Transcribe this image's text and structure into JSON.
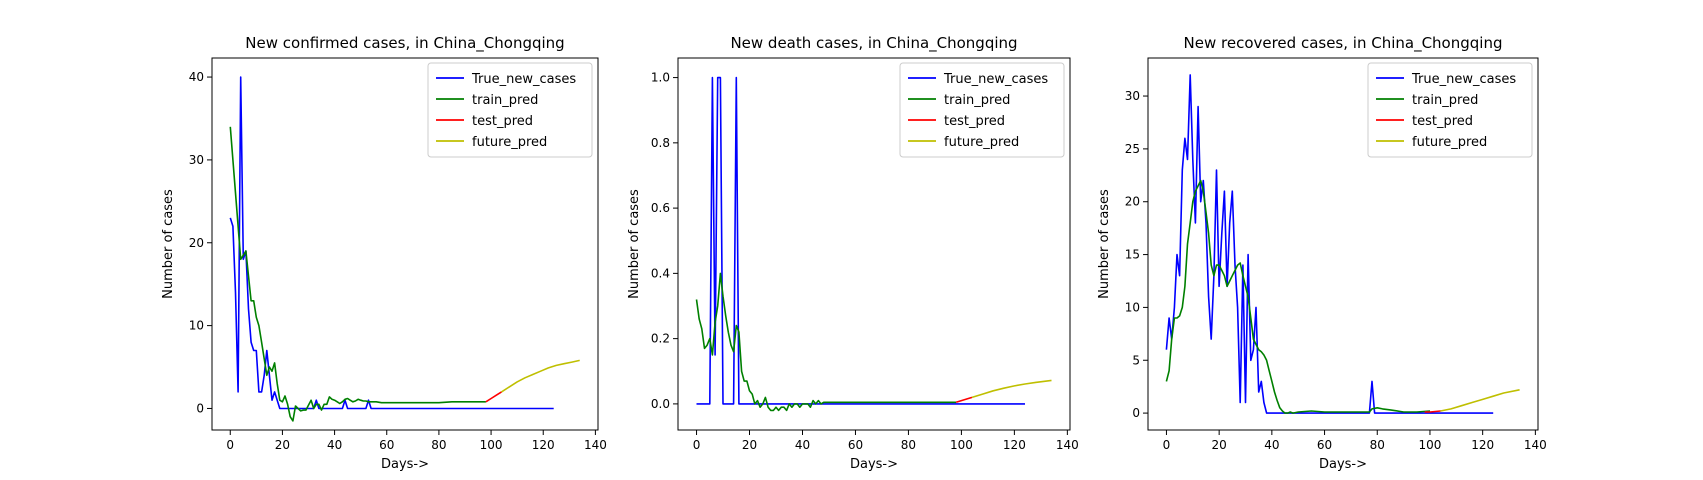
{
  "colors": {
    "True_new_cases": "#0000ff",
    "train_pred": "#008000",
    "test_pred": "#ff0000",
    "future_pred": "#bfbf00"
  },
  "chart_data": [
    {
      "type": "line",
      "title": "New confirmed cases, in China_Chongqing",
      "xlabel": "Days->",
      "ylabel": "Number of cases",
      "xlim": [
        -7,
        141
      ],
      "ylim": [
        -2.6,
        42.3
      ],
      "xticks": [
        "0",
        "20",
        "40",
        "60",
        "80",
        "100",
        "120",
        "140"
      ],
      "yticks": [
        "0",
        "10",
        "20",
        "30",
        "40"
      ],
      "grid": false,
      "legend_position": "top-right",
      "series": [
        {
          "name": "True_new_cases",
          "x": [
            0,
            1,
            2,
            3,
            4,
            5,
            6,
            7,
            8,
            9,
            10,
            11,
            12,
            13,
            14,
            15,
            16,
            17,
            18,
            19,
            20,
            21,
            22,
            23,
            24,
            25,
            26,
            27,
            28,
            29,
            30,
            31,
            32,
            33,
            34,
            35,
            36,
            37,
            38,
            39,
            40,
            41,
            42,
            43,
            44,
            45,
            46,
            47,
            48,
            49,
            50,
            51,
            52,
            53,
            54,
            55,
            60,
            70,
            80,
            90,
            100,
            110,
            120,
            124
          ],
          "y": [
            23,
            22,
            14,
            2,
            40,
            18,
            19,
            12,
            8,
            7,
            7,
            2,
            2,
            4,
            7,
            4,
            1,
            2,
            1,
            0,
            0,
            0,
            0,
            0,
            0,
            0,
            0,
            0,
            0,
            0,
            0,
            0,
            0,
            1,
            0,
            0,
            0,
            0,
            0,
            0,
            0,
            0,
            0,
            0,
            1,
            0,
            0,
            0,
            0,
            0,
            0,
            0,
            0,
            1,
            0,
            0,
            0,
            0,
            0,
            0,
            0,
            0,
            0,
            0
          ]
        },
        {
          "name": "train_pred",
          "x": [
            0,
            2,
            4,
            5,
            6,
            7,
            8,
            9,
            10,
            11,
            12,
            13,
            14,
            15,
            16,
            17,
            18,
            19,
            20,
            21,
            22,
            23,
            24,
            25,
            26,
            27,
            28,
            29,
            30,
            31,
            32,
            33,
            34,
            35,
            36,
            37,
            38,
            39,
            40,
            41,
            42,
            43,
            44,
            45,
            46,
            47,
            48,
            49,
            50,
            51,
            52,
            53,
            54,
            55,
            56,
            58,
            60,
            65,
            70,
            75,
            80,
            85,
            90,
            95,
            98
          ],
          "y": [
            34,
            26,
            18,
            18.5,
            19,
            16,
            13,
            13,
            11,
            10,
            8,
            6,
            4,
            5,
            4.5,
            5.5,
            3,
            1,
            0.8,
            1.5,
            0.5,
            -1,
            -1.5,
            0.3,
            0,
            -0.3,
            -0.2,
            -0.2,
            0.4,
            1,
            0,
            0.5,
            0.5,
            -0.2,
            0.5,
            0.5,
            1.4,
            1.1,
            1,
            0.8,
            0.6,
            0.8,
            1.1,
            1.2,
            1,
            0.8,
            0.9,
            1.1,
            1,
            0.9,
            0.9,
            0.8,
            0.8,
            0.8,
            0.8,
            0.7,
            0.7,
            0.7,
            0.7,
            0.7,
            0.7,
            0.8,
            0.8,
            0.8,
            0.8
          ]
        },
        {
          "name": "test_pred",
          "x": [
            98,
            100,
            102,
            104
          ],
          "y": [
            0.8,
            1.2,
            1.6,
            2
          ]
        },
        {
          "name": "future_pred",
          "x": [
            104,
            107,
            110,
            113,
            116,
            119,
            122,
            125,
            128,
            131,
            134
          ],
          "y": [
            2,
            2.6,
            3.2,
            3.7,
            4.1,
            4.5,
            4.9,
            5.2,
            5.4,
            5.6,
            5.8
          ]
        }
      ]
    },
    {
      "type": "line",
      "title": "New death cases, in China_Chongqing",
      "xlabel": "Days->",
      "ylabel": "Number of cases",
      "xlim": [
        -7,
        141
      ],
      "ylim": [
        -0.08,
        1.06
      ],
      "xticks": [
        "0",
        "20",
        "40",
        "60",
        "80",
        "100",
        "120",
        "140"
      ],
      "yticks": [
        "0.0",
        "0.2",
        "0.4",
        "0.6",
        "0.8",
        "1.0"
      ],
      "grid": false,
      "legend_position": "top-right",
      "series": [
        {
          "name": "True_new_cases",
          "x": [
            0,
            5,
            6,
            7,
            8,
            9,
            10,
            11,
            14,
            15,
            16,
            124
          ],
          "y": [
            0,
            0,
            1,
            0.15,
            1,
            1,
            0,
            0,
            0,
            1,
            0,
            0
          ]
        },
        {
          "name": "train_pred",
          "x": [
            0,
            1,
            2,
            3,
            4,
            5,
            6,
            7,
            8,
            9,
            10,
            11,
            12,
            13,
            14,
            15,
            16,
            17,
            18,
            19,
            20,
            21,
            22,
            23,
            24,
            25,
            26,
            27,
            28,
            29,
            30,
            31,
            32,
            33,
            34,
            35,
            36,
            37,
            38,
            39,
            40,
            41,
            42,
            43,
            44,
            45,
            46,
            47,
            48,
            50,
            55,
            60,
            70,
            80,
            90,
            98
          ],
          "y": [
            0.32,
            0.26,
            0.23,
            0.17,
            0.18,
            0.2,
            0.15,
            0.25,
            0.3,
            0.4,
            0.33,
            0.27,
            0.22,
            0.18,
            0.16,
            0.24,
            0.22,
            0.1,
            0.07,
            0.07,
            0.04,
            0.03,
            0,
            0.01,
            -0.01,
            0,
            0.02,
            -0.01,
            -0.02,
            -0.02,
            -0.01,
            -0.02,
            -0.01,
            -0.01,
            -0.02,
            0,
            -0.01,
            0,
            0,
            -0.01,
            0,
            0,
            0,
            -0.01,
            0.01,
            0,
            0.01,
            0,
            0.005,
            0.005,
            0.005,
            0.005,
            0.005,
            0.005,
            0.005,
            0.005
          ]
        },
        {
          "name": "test_pred",
          "x": [
            98,
            100,
            102,
            104
          ],
          "y": [
            0.005,
            0.01,
            0.015,
            0.02
          ]
        },
        {
          "name": "future_pred",
          "x": [
            104,
            108,
            112,
            116,
            120,
            124,
            128,
            134
          ],
          "y": [
            0.02,
            0.03,
            0.04,
            0.048,
            0.055,
            0.061,
            0.066,
            0.072
          ]
        }
      ]
    },
    {
      "type": "line",
      "title": "New recovered cases, in China_Chongqing",
      "xlabel": "Days->",
      "ylabel": "Number of cases",
      "xlim": [
        -7,
        141
      ],
      "ylim": [
        -1.6,
        33.6
      ],
      "xticks": [
        "0",
        "20",
        "40",
        "60",
        "80",
        "100",
        "120",
        "140"
      ],
      "yticks": [
        "0",
        "5",
        "10",
        "15",
        "20",
        "25",
        "30"
      ],
      "grid": false,
      "legend_position": "top-right",
      "series": [
        {
          "name": "True_new_cases",
          "x": [
            0,
            1,
            2,
            3,
            4,
            5,
            6,
            7,
            8,
            9,
            10,
            11,
            12,
            13,
            14,
            15,
            16,
            17,
            18,
            19,
            20,
            21,
            22,
            23,
            24,
            25,
            26,
            27,
            28,
            29,
            30,
            31,
            32,
            33,
            34,
            35,
            36,
            37,
            38,
            39,
            40,
            41,
            42,
            50,
            60,
            70,
            76,
            77,
            78,
            79,
            80,
            90,
            100,
            110,
            120,
            124
          ],
          "y": [
            6,
            9,
            7,
            10,
            15,
            13,
            23,
            26,
            24,
            32,
            24,
            18,
            29,
            20,
            22,
            18,
            11,
            7,
            13,
            23,
            12,
            17,
            21,
            12,
            18,
            21,
            14,
            10,
            1,
            14,
            1,
            15,
            5,
            6,
            10,
            2,
            3,
            1,
            0,
            0,
            0,
            0,
            0,
            0,
            0,
            0,
            0,
            0,
            3,
            0,
            0,
            0,
            0,
            0,
            0,
            0
          ]
        },
        {
          "name": "train_pred",
          "x": [
            0,
            1,
            2,
            3,
            4,
            5,
            6,
            7,
            8,
            9,
            10,
            11,
            12,
            13,
            14,
            15,
            16,
            17,
            18,
            19,
            20,
            21,
            22,
            23,
            24,
            25,
            26,
            27,
            28,
            29,
            30,
            31,
            32,
            33,
            34,
            35,
            36,
            37,
            38,
            39,
            40,
            41,
            42,
            43,
            44,
            45,
            46,
            47,
            48,
            50,
            55,
            60,
            70,
            77,
            78,
            80,
            82,
            85,
            90,
            95,
            100
          ],
          "y": [
            3,
            4,
            7,
            9,
            9,
            9.2,
            10,
            12,
            16,
            18,
            20,
            21,
            21.5,
            22,
            21,
            19,
            17,
            14,
            13,
            14,
            14,
            13.5,
            13,
            12,
            12.5,
            13,
            13.5,
            14,
            14.2,
            13,
            12,
            11,
            9,
            7,
            6.5,
            6,
            5.8,
            5.5,
            5,
            4,
            3,
            2,
            1.2,
            0.5,
            0.2,
            0,
            0,
            0.1,
            0,
            0.1,
            0.2,
            0.1,
            0.1,
            0.1,
            0.4,
            0.5,
            0.4,
            0.3,
            0.1,
            0.1,
            0.2
          ]
        },
        {
          "name": "test_pred",
          "x": [
            98,
            100,
            102,
            104
          ],
          "y": [
            0.1,
            0.1,
            0.15,
            0.2
          ]
        },
        {
          "name": "future_pred",
          "x": [
            104,
            108,
            112,
            116,
            120,
            124,
            128,
            134
          ],
          "y": [
            0.2,
            0.4,
            0.7,
            1.0,
            1.3,
            1.6,
            1.9,
            2.2
          ]
        }
      ]
    }
  ]
}
